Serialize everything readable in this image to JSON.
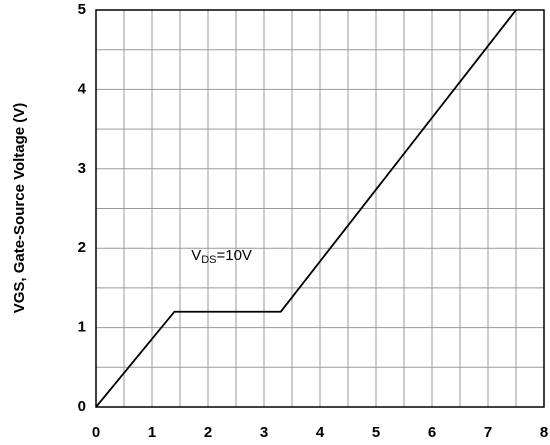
{
  "chart_data": {
    "type": "line",
    "ylabel": "VGS, Gate-Source Voltage (V)",
    "x": [
      0,
      1.4,
      3.3,
      7.5
    ],
    "series": [
      {
        "color": "#000000",
        "values": [
          0,
          1.2,
          1.2,
          5
        ]
      }
    ],
    "xlim": [
      0,
      8
    ],
    "ylim": [
      0,
      5
    ],
    "xticks": [
      0,
      1,
      2,
      3,
      4,
      5,
      6,
      7,
      8
    ],
    "yticks": [
      0,
      1,
      2,
      3,
      4,
      5
    ],
    "x_minor_grid": [
      0.5,
      1.5,
      2.5,
      3.5,
      4.5,
      5.5,
      6.5,
      7.5
    ],
    "y_minor_grid": [
      0.5,
      1.5,
      2.5,
      3.5,
      4.5
    ],
    "grid": true,
    "annotation": {
      "main": "V",
      "subscript": "DS",
      "suffix": "=10V",
      "x": 1.7,
      "y": 1.9
    }
  }
}
